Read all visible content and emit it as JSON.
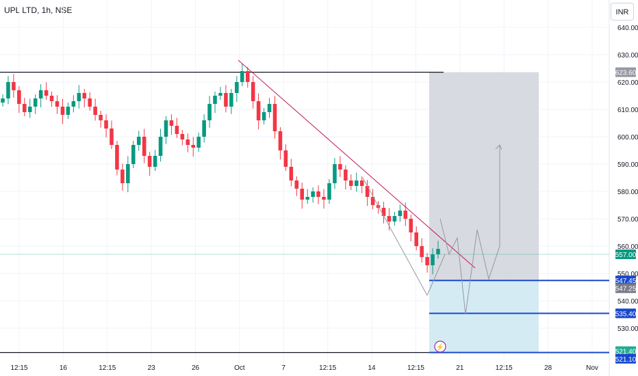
{
  "header": {
    "title": "UPL LTD, 1h, NSE",
    "currency": "INR"
  },
  "colors": {
    "up": "#089981",
    "down": "#f23645",
    "trendline": "#c2185b",
    "blue_line": "#1848cc",
    "stop_zone": "#cfe9f3",
    "target_zone": "#d1d4dc",
    "current_price": "#089981"
  },
  "chart_data": {
    "type": "candlestick",
    "title": "UPL LTD, 1h, NSE",
    "ylim": [
      515,
      645
    ],
    "y_ticks": [
      640,
      630,
      620,
      610,
      600,
      590,
      580,
      570,
      560,
      550,
      540,
      530
    ],
    "x_ticks": [
      "12:15",
      "16",
      "12:15",
      "23",
      "26",
      "Oct",
      "7",
      "12:15",
      "14",
      "12:15",
      "21",
      "12:15",
      "28",
      "Nov"
    ],
    "grid": true,
    "candle_path": [
      614,
      620,
      617,
      612,
      609,
      611,
      614,
      617,
      615,
      613,
      611,
      608,
      611,
      613,
      616,
      614,
      611,
      608,
      606,
      603,
      597,
      588,
      583,
      590,
      597,
      600,
      593,
      589,
      593,
      600,
      606,
      604,
      601,
      599,
      597,
      596,
      600,
      606,
      612,
      615,
      616,
      611,
      616,
      620,
      624,
      620,
      613,
      606,
      609,
      612,
      602,
      595,
      589,
      584,
      581,
      577,
      578,
      580,
      578,
      577,
      583,
      590,
      588,
      584,
      582,
      584,
      582,
      578,
      575,
      574,
      571,
      569,
      571,
      573,
      570,
      565,
      560,
      556,
      553,
      557,
      559
    ],
    "price_labels": [
      {
        "value": "623.60",
        "color": "#9598a1"
      },
      {
        "value": "557.00",
        "color": "#089981"
      },
      {
        "value": "547.45",
        "color": "#1848cc"
      },
      {
        "value": "547.25",
        "color": "#787b86"
      },
      {
        "value": "535.40",
        "color": "#1848cc"
      },
      {
        "value": "521.40",
        "color": "#22ab94"
      },
      {
        "value": "521.10",
        "color": "#1848cc"
      }
    ],
    "horizontal_levels": [
      623.6,
      521.1
    ],
    "blue_levels": [
      547.45,
      535.4,
      521.1
    ],
    "current_price": 557.0,
    "trendline": {
      "from": [
        0.0,
        628
      ],
      "to": [
        1.0,
        552
      ]
    },
    "projection_path": [
      570,
      557,
      563,
      535,
      566,
      548,
      560
    ]
  }
}
